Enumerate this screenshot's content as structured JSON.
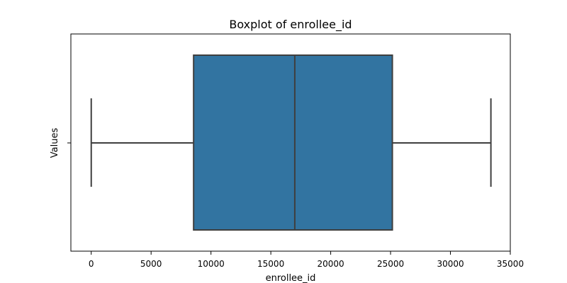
{
  "chart_data": {
    "type": "boxplot",
    "title": "Boxplot of enrollee_id",
    "xlabel": "enrollee_id",
    "ylabel": "Values",
    "orientation": "horizontal",
    "xlim": [
      -1700,
      35000
    ],
    "xticks": [
      0,
      5000,
      10000,
      15000,
      20000,
      25000,
      30000,
      35000
    ],
    "xtick_labels": [
      "0",
      "5000",
      "10000",
      "15000",
      "20000",
      "25000",
      "30000",
      "35000"
    ],
    "grid": false,
    "box_color": "#3274a1",
    "line_color": "#3f3f3f",
    "stats": {
      "min": 1,
      "q1": 8550,
      "median": 17000,
      "q3": 25150,
      "max": 33380
    }
  }
}
